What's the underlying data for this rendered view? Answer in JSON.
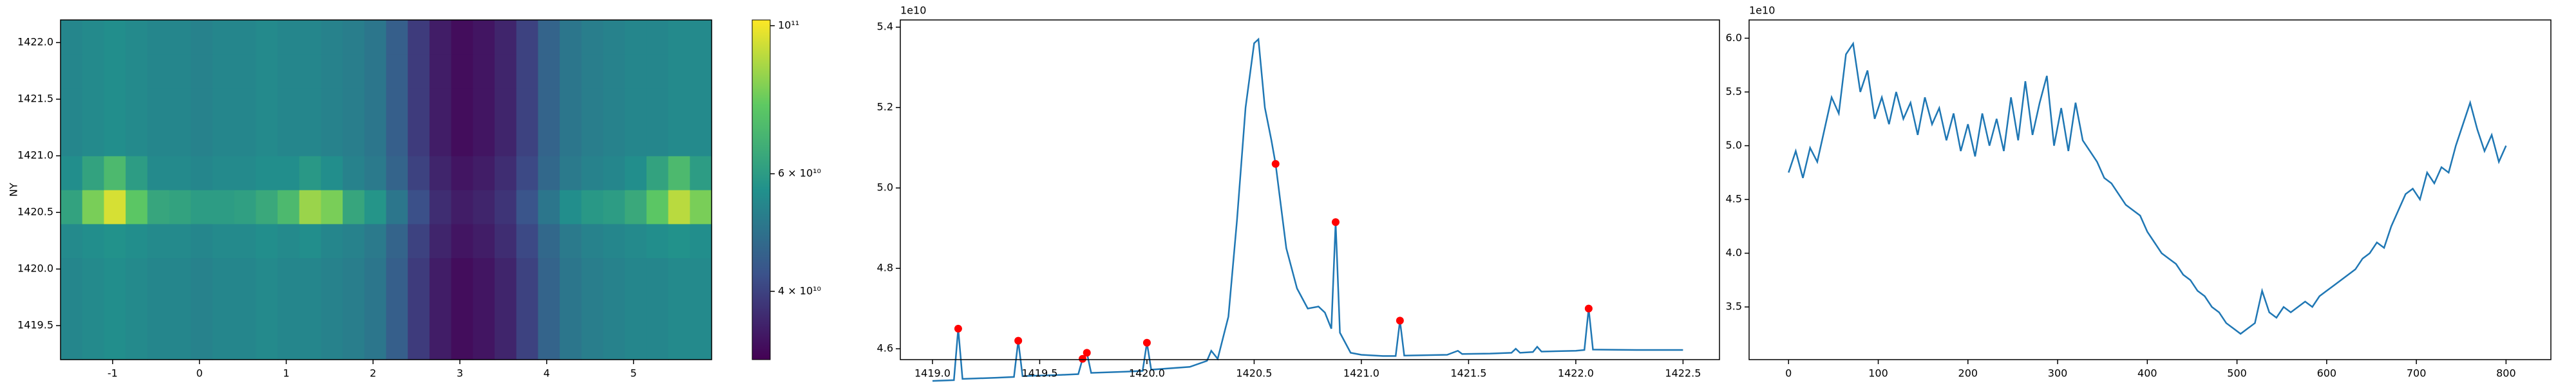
{
  "chart_data": [
    {
      "type": "heatmap",
      "ylabel": "NY",
      "xlim": [
        -1.6,
        5.9
      ],
      "xticks": [
        -1,
        0,
        1,
        2,
        3,
        4,
        5
      ],
      "ylim": [
        1419.2,
        1422.2
      ],
      "yticks": [
        1419.5,
        {
          "value": 1420,
          "label": "1420.0"
        },
        1420.5,
        {
          "value": 1421,
          "label": "1421.0"
        },
        1421.5,
        {
          "value": 1422,
          "label": "1422.0"
        }
      ],
      "clim": [
        31600000000.0,
        102000000000.0
      ],
      "log_color": true,
      "cticks": [
        {
          "value": 100000000000.0,
          "label": "10¹¹"
        },
        {
          "value": 60000000000.0,
          "label": "6 × 10¹⁰"
        },
        {
          "value": 40000000000.0,
          "label": "4 × 10¹⁰"
        }
      ],
      "x": [
        -1.475,
        -1.225,
        -0.975,
        -0.725,
        -0.475,
        -0.225,
        0.025,
        0.275,
        0.525,
        0.775,
        1.025,
        1.275,
        1.525,
        1.775,
        2.025,
        2.275,
        2.525,
        2.775,
        3.025,
        3.275,
        3.525,
        3.775,
        4.025,
        4.275,
        4.525,
        4.775,
        5.025,
        5.275,
        5.525,
        5.775
      ],
      "y": [
        1419.35,
        1419.65,
        1419.95,
        1420.25,
        1420.55,
        1420.85,
        1421.15,
        1421.45,
        1421.75,
        1422.05
      ],
      "values": [
        [
          54000000000.0,
          55000000000.0,
          56000000000.0,
          55000000000.0,
          54000000000.0,
          54000000000.0,
          53000000000.0,
          54000000000.0,
          54000000000.0,
          55000000000.0,
          54000000000.0,
          54000000000.0,
          53000000000.0,
          52000000000.0,
          50000000000.0,
          45000000000.0,
          39000000000.0,
          35000000000.0,
          33000000000.0,
          34000000000.0,
          36000000000.0,
          40000000000.0,
          46000000000.0,
          50000000000.0,
          52000000000.0,
          53000000000.0,
          54000000000.0,
          54000000000.0,
          55000000000.0,
          55000000000.0
        ],
        [
          54000000000.0,
          55000000000.0,
          56000000000.0,
          55000000000.0,
          54000000000.0,
          54000000000.0,
          53000000000.0,
          54000000000.0,
          54000000000.0,
          55000000000.0,
          54000000000.0,
          54000000000.0,
          53000000000.0,
          52000000000.0,
          50000000000.0,
          45000000000.0,
          39000000000.0,
          35000000000.0,
          33000000000.0,
          34000000000.0,
          36000000000.0,
          40000000000.0,
          46000000000.0,
          50000000000.0,
          52000000000.0,
          53000000000.0,
          54000000000.0,
          54000000000.0,
          55000000000.0,
          55000000000.0
        ],
        [
          54000000000.0,
          55000000000.0,
          56000000000.0,
          55000000000.0,
          54000000000.0,
          54000000000.0,
          53000000000.0,
          54000000000.0,
          54000000000.0,
          55000000000.0,
          54000000000.0,
          54000000000.0,
          53000000000.0,
          52000000000.0,
          50000000000.0,
          45000000000.0,
          39000000000.0,
          35000000000.0,
          33000000000.0,
          34000000000.0,
          36000000000.0,
          40000000000.0,
          46000000000.0,
          50000000000.0,
          52000000000.0,
          53000000000.0,
          54000000000.0,
          54000000000.0,
          55000000000.0,
          55000000000.0
        ],
        [
          55000000000.0,
          56000000000.0,
          57000000000.0,
          56000000000.0,
          55000000000.0,
          55000000000.0,
          54000000000.0,
          55000000000.0,
          55000000000.0,
          56000000000.0,
          55000000000.0,
          56000000000.0,
          54000000000.0,
          53000000000.0,
          51000000000.0,
          46000000000.0,
          40000000000.0,
          36000000000.0,
          34000000000.0,
          35000000000.0,
          37000000000.0,
          41000000000.0,
          47000000000.0,
          51000000000.0,
          53000000000.0,
          54000000000.0,
          55000000000.0,
          56000000000.0,
          57000000000.0,
          56000000000.0
        ],
        [
          62000000000.0,
          80000000000.0,
          95000000000.0,
          75000000000.0,
          63000000000.0,
          62000000000.0,
          60000000000.0,
          60000000000.0,
          61000000000.0,
          64000000000.0,
          70000000000.0,
          85000000000.0,
          80000000000.0,
          63000000000.0,
          58000000000.0,
          50000000000.0,
          42000000000.0,
          37000000000.0,
          35000000000.0,
          36000000000.0,
          38000000000.0,
          43000000000.0,
          50000000000.0,
          56000000000.0,
          59000000000.0,
          60000000000.0,
          64000000000.0,
          75000000000.0,
          90000000000.0,
          80000000000.0
        ],
        [
          56000000000.0,
          62000000000.0,
          70000000000.0,
          60000000000.0,
          55000000000.0,
          55000000000.0,
          54000000000.0,
          55000000000.0,
          55000000000.0,
          56000000000.0,
          56000000000.0,
          59000000000.0,
          56000000000.0,
          53000000000.0,
          51000000000.0,
          46000000000.0,
          40000000000.0,
          36000000000.0,
          34000000000.0,
          35000000000.0,
          37000000000.0,
          41000000000.0,
          47000000000.0,
          51000000000.0,
          53000000000.0,
          54000000000.0,
          56000000000.0,
          62000000000.0,
          70000000000.0,
          60000000000.0
        ],
        [
          54000000000.0,
          55000000000.0,
          56000000000.0,
          55000000000.0,
          54000000000.0,
          54000000000.0,
          53000000000.0,
          54000000000.0,
          54000000000.0,
          55000000000.0,
          54000000000.0,
          54000000000.0,
          53000000000.0,
          52000000000.0,
          50000000000.0,
          45000000000.0,
          39000000000.0,
          35000000000.0,
          33000000000.0,
          34000000000.0,
          36000000000.0,
          40000000000.0,
          46000000000.0,
          50000000000.0,
          52000000000.0,
          53000000000.0,
          54000000000.0,
          54000000000.0,
          55000000000.0,
          55000000000.0
        ],
        [
          54000000000.0,
          55000000000.0,
          56000000000.0,
          55000000000.0,
          54000000000.0,
          54000000000.0,
          53000000000.0,
          54000000000.0,
          54000000000.0,
          55000000000.0,
          54000000000.0,
          54000000000.0,
          53000000000.0,
          52000000000.0,
          50000000000.0,
          45000000000.0,
          39000000000.0,
          35000000000.0,
          33000000000.0,
          34000000000.0,
          36000000000.0,
          40000000000.0,
          46000000000.0,
          50000000000.0,
          52000000000.0,
          53000000000.0,
          54000000000.0,
          54000000000.0,
          55000000000.0,
          55000000000.0
        ],
        [
          54000000000.0,
          55000000000.0,
          56000000000.0,
          55000000000.0,
          54000000000.0,
          54000000000.0,
          53000000000.0,
          54000000000.0,
          54000000000.0,
          55000000000.0,
          54000000000.0,
          54000000000.0,
          53000000000.0,
          52000000000.0,
          50000000000.0,
          45000000000.0,
          39000000000.0,
          35000000000.0,
          33000000000.0,
          34000000000.0,
          36000000000.0,
          40000000000.0,
          46000000000.0,
          50000000000.0,
          52000000000.0,
          53000000000.0,
          54000000000.0,
          54000000000.0,
          55000000000.0,
          55000000000.0
        ],
        [
          54000000000.0,
          55000000000.0,
          56000000000.0,
          55000000000.0,
          54000000000.0,
          54000000000.0,
          53000000000.0,
          54000000000.0,
          54000000000.0,
          55000000000.0,
          54000000000.0,
          54000000000.0,
          53000000000.0,
          52000000000.0,
          50000000000.0,
          45000000000.0,
          39000000000.0,
          35000000000.0,
          33000000000.0,
          34000000000.0,
          36000000000.0,
          40000000000.0,
          46000000000.0,
          50000000000.0,
          52000000000.0,
          53000000000.0,
          54000000000.0,
          54000000000.0,
          55000000000.0,
          55000000000.0
        ]
      ]
    },
    {
      "type": "line",
      "offset_label": "1e10",
      "color": "#1f77b4",
      "xlim": [
        1418.85,
        1422.67
      ],
      "xticks": [
        {
          "value": 1419,
          "label": "1419.0"
        },
        1419.5,
        {
          "value": 1420,
          "label": "1420.0"
        },
        1420.5,
        {
          "value": 1421,
          "label": "1421.0"
        },
        1421.5,
        {
          "value": 1422,
          "label": "1422.0"
        },
        1422.5
      ],
      "ylim": [
        45730000000.0,
        54180000000.0
      ],
      "yticks": [
        {
          "value": 46000000000.0,
          "label": "4.6"
        },
        {
          "value": 48000000000.0,
          "label": "4.8"
        },
        {
          "value": 50000000000.0,
          "label": "5.0"
        },
        {
          "value": 52000000000.0,
          "label": "5.2"
        },
        {
          "value": 54000000000.0,
          "label": "5.4"
        }
      ],
      "x": [
        1419.0,
        1419.1,
        1419.12,
        1419.14,
        1419.3,
        1419.38,
        1419.4,
        1419.42,
        1419.6,
        1419.68,
        1419.7,
        1419.72,
        1419.74,
        1419.9,
        1419.98,
        1420.0,
        1420.02,
        1420.2,
        1420.28,
        1420.3,
        1420.33,
        1420.38,
        1420.42,
        1420.46,
        1420.5,
        1420.52,
        1420.55,
        1420.58,
        1420.6,
        1420.65,
        1420.7,
        1420.75,
        1420.8,
        1420.83,
        1420.86,
        1420.88,
        1420.9,
        1420.95,
        1421.0,
        1421.1,
        1421.16,
        1421.18,
        1421.2,
        1421.4,
        1421.45,
        1421.47,
        1421.6,
        1421.7,
        1421.72,
        1421.74,
        1421.8,
        1421.82,
        1421.84,
        1422.0,
        1422.04,
        1422.06,
        1422.08,
        1422.3,
        1422.5
      ],
      "values": [
        45200000000.0,
        45220000000.0,
        46500000000.0,
        45250000000.0,
        45280000000.0,
        45300000000.0,
        46200000000.0,
        45320000000.0,
        45350000000.0,
        45370000000.0,
        45750000000.0,
        45900000000.0,
        45400000000.0,
        45430000000.0,
        45450000000.0,
        46150000000.0,
        45480000000.0,
        45550000000.0,
        45700000000.0,
        45950000000.0,
        45750000000.0,
        46800000000.0,
        49200000000.0,
        52000000000.0,
        53600000000.0,
        53700000000.0,
        52000000000.0,
        51200000000.0,
        50600000000.0,
        48500000000.0,
        47500000000.0,
        47000000000.0,
        47050000000.0,
        46900000000.0,
        46500000000.0,
        49150000000.0,
        46400000000.0,
        45900000000.0,
        45850000000.0,
        45820000000.0,
        45820000000.0,
        46700000000.0,
        45830000000.0,
        45850000000.0,
        45950000000.0,
        45870000000.0,
        45880000000.0,
        45900000000.0,
        46000000000.0,
        45900000000.0,
        45920000000.0,
        46050000000.0,
        45930000000.0,
        45950000000.0,
        45970000000.0,
        47000000000.0,
        45980000000.0,
        45970000000.0,
        45970000000.0
      ],
      "points": {
        "color": "#ff0000",
        "x": [
          1419.12,
          1419.4,
          1419.7,
          1419.72,
          1420.0,
          1420.6,
          1420.88,
          1421.18,
          1422.06
        ],
        "values": [
          46500000000.0,
          46200000000.0,
          45750000000.0,
          45900000000.0,
          46150000000.0,
          50600000000.0,
          49150000000.0,
          46700000000.0,
          47000000000.0
        ]
      }
    },
    {
      "type": "line",
      "offset_label": "1e10",
      "color": "#1f77b4",
      "xlim": [
        -44,
        850
      ],
      "xticks": [
        0,
        100,
        200,
        300,
        400,
        500,
        600,
        700,
        800
      ],
      "ylim": [
        30100000000.0,
        61700000000.0
      ],
      "yticks": [
        {
          "value": 35000000000.0,
          "label": "3.5"
        },
        {
          "value": 40000000000.0,
          "label": "4.0"
        },
        {
          "value": 45000000000.0,
          "label": "4.5"
        },
        {
          "value": 50000000000.0,
          "label": "5.0"
        },
        {
          "value": 55000000000.0,
          "label": "5.5"
        },
        {
          "value": 60000000000.0,
          "label": "6.0"
        }
      ],
      "x": [
        0,
        8,
        16,
        24,
        32,
        40,
        48,
        56,
        64,
        72,
        80,
        88,
        96,
        104,
        112,
        120,
        128,
        136,
        144,
        152,
        160,
        168,
        176,
        184,
        192,
        200,
        208,
        216,
        224,
        232,
        240,
        248,
        256,
        264,
        272,
        280,
        288,
        296,
        304,
        312,
        320,
        328,
        336,
        344,
        352,
        360,
        368,
        376,
        384,
        392,
        400,
        408,
        416,
        424,
        432,
        440,
        448,
        456,
        464,
        472,
        480,
        488,
        496,
        504,
        512,
        520,
        528,
        536,
        544,
        552,
        560,
        568,
        576,
        584,
        592,
        600,
        608,
        616,
        624,
        632,
        640,
        648,
        656,
        664,
        672,
        680,
        688,
        696,
        704,
        712,
        720,
        728,
        736,
        744,
        752,
        760,
        768,
        776,
        784,
        792,
        800
      ],
      "values": [
        47500000000.0,
        49500000000.0,
        47000000000.0,
        49800000000.0,
        48500000000.0,
        51500000000.0,
        54500000000.0,
        53000000000.0,
        58500000000.0,
        59500000000.0,
        55000000000.0,
        57000000000.0,
        52500000000.0,
        54500000000.0,
        52000000000.0,
        55000000000.0,
        52500000000.0,
        54000000000.0,
        51000000000.0,
        54500000000.0,
        52000000000.0,
        53500000000.0,
        50500000000.0,
        53000000000.0,
        49500000000.0,
        52000000000.0,
        49000000000.0,
        53000000000.0,
        50000000000.0,
        52500000000.0,
        49500000000.0,
        54500000000.0,
        50500000000.0,
        56000000000.0,
        51000000000.0,
        54000000000.0,
        56500000000.0,
        50000000000.0,
        53500000000.0,
        49500000000.0,
        54000000000.0,
        50500000000.0,
        49500000000.0,
        48500000000.0,
        47000000000.0,
        46500000000.0,
        45500000000.0,
        44500000000.0,
        44000000000.0,
        43500000000.0,
        42000000000.0,
        41000000000.0,
        40000000000.0,
        39500000000.0,
        39000000000.0,
        38000000000.0,
        37500000000.0,
        36500000000.0,
        36000000000.0,
        35000000000.0,
        34500000000.0,
        33500000000.0,
        33000000000.0,
        32500000000.0,
        33000000000.0,
        33500000000.0,
        36500000000.0,
        34500000000.0,
        34000000000.0,
        35000000000.0,
        34500000000.0,
        35000000000.0,
        35500000000.0,
        35000000000.0,
        36000000000.0,
        36500000000.0,
        37000000000.0,
        37500000000.0,
        38000000000.0,
        38500000000.0,
        39500000000.0,
        40000000000.0,
        41000000000.0,
        40500000000.0,
        42500000000.0,
        44000000000.0,
        45500000000.0,
        46000000000.0,
        45000000000.0,
        47500000000.0,
        46500000000.0,
        48000000000.0,
        47500000000.0,
        50000000000.0,
        52000000000.0,
        54000000000.0,
        51500000000.0,
        49500000000.0,
        51000000000.0,
        48500000000.0,
        50000000000.0
      ]
    }
  ]
}
